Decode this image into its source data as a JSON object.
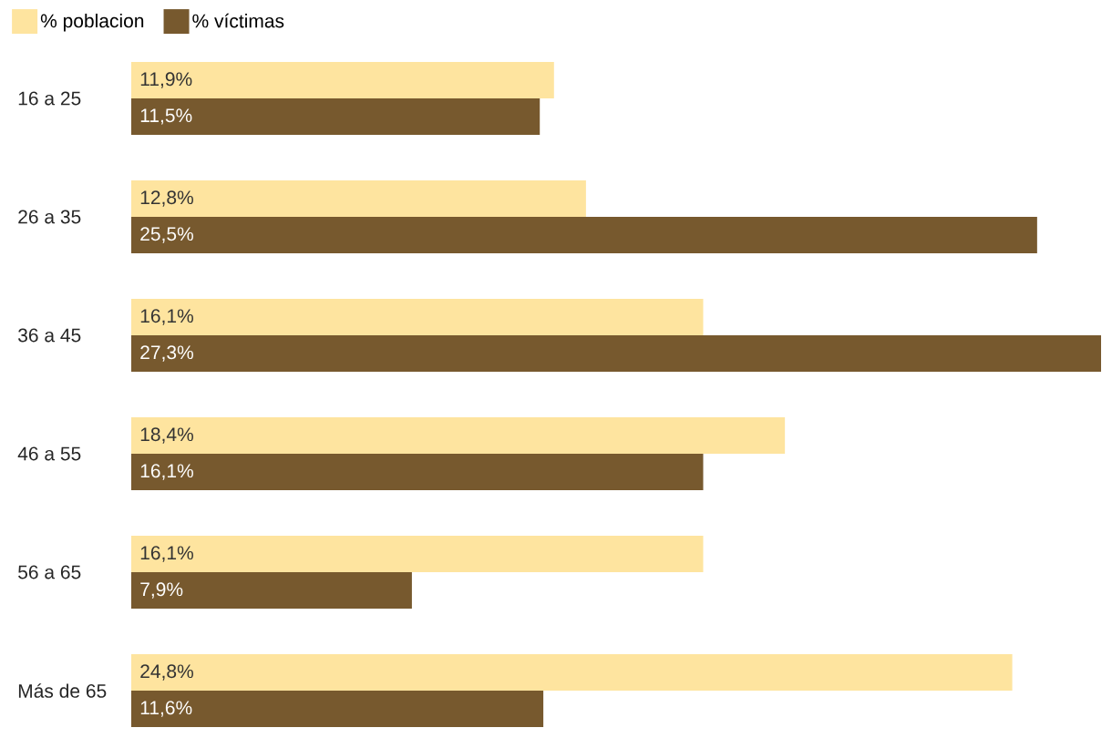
{
  "chart_data": {
    "type": "bar",
    "orientation": "horizontal",
    "categories": [
      "16 a 25",
      "26 a 35",
      "36 a 45",
      "46 a 55",
      "56 a 65",
      "Más de 65"
    ],
    "series": [
      {
        "name": "% poblacion",
        "color": "#fee49f",
        "values": [
          11.9,
          12.8,
          16.1,
          18.4,
          16.1,
          24.8
        ],
        "value_labels": [
          "11,9%",
          "12,8%",
          "16,1%",
          "18,4%",
          "16,1%",
          "24,8%"
        ]
      },
      {
        "name": "% víctimas",
        "color": "#77592e",
        "values": [
          11.5,
          25.5,
          27.3,
          16.1,
          7.9,
          11.6
        ],
        "value_labels": [
          "11,5%",
          "25,5%",
          "27,3%",
          "16,1%",
          "7,9%",
          "11,6%"
        ]
      }
    ],
    "legend": "top left"
  }
}
